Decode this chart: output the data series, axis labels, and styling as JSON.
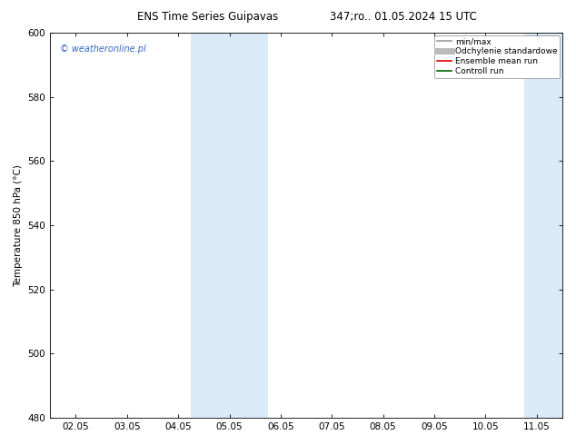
{
  "title_left": "ENS Time Series Guipavas",
  "title_right": "347;ro.. 01.05.2024 15 UTC",
  "ylabel": "Temperature 850 hPa (°C)",
  "ylim": [
    480,
    600
  ],
  "yticks": [
    480,
    500,
    520,
    540,
    560,
    580,
    600
  ],
  "xlim_start": -0.5,
  "xlim_end": 9.5,
  "xtick_labels": [
    "02.05",
    "03.05",
    "04.05",
    "05.05",
    "06.05",
    "07.05",
    "08.05",
    "09.05",
    "10.05",
    "11.05"
  ],
  "xtick_positions": [
    0,
    1,
    2,
    3,
    4,
    5,
    6,
    7,
    8,
    9
  ],
  "shaded_bands": [
    {
      "xmin": 2.25,
      "xmax": 3.75,
      "color": "#daeaf8"
    },
    {
      "xmin": 8.75,
      "xmax": 9.5,
      "color": "#daeaf8"
    }
  ],
  "watermark_text": "© weatheronline.pl",
  "watermark_color": "#3366bb",
  "legend_items": [
    {
      "label": "min/max",
      "color": "#999999",
      "lw": 1.2
    },
    {
      "label": "Odchylenie standardowe",
      "color": "#bbbbbb",
      "lw": 5
    },
    {
      "label": "Ensemble mean run",
      "color": "#dd0000",
      "lw": 1.2
    },
    {
      "label": "Controll run",
      "color": "#006600",
      "lw": 1.2
    }
  ],
  "bg_color": "#ffffff",
  "plot_bg_color": "#ffffff",
  "border_color": "#000000",
  "tick_color": "#000000",
  "font_size": 7.5,
  "title_font_size": 8.5
}
